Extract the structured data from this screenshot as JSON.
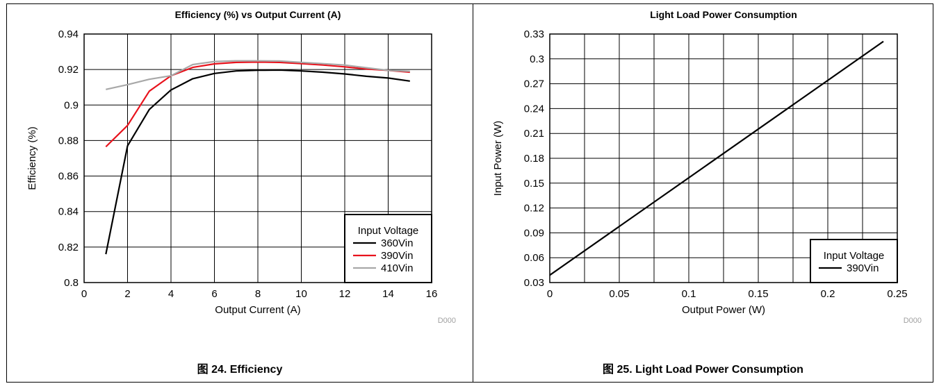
{
  "charts": [
    {
      "id": "efficiency",
      "caption": "图 24. Efficiency",
      "code": "D000",
      "chart_data": {
        "type": "line",
        "title": "Efficiency (%) vs Output Current (A)",
        "xlabel": "Output Current (A)",
        "ylabel": "Efficiency (%)",
        "xlim": [
          0,
          16
        ],
        "ylim": [
          0.8,
          0.94
        ],
        "xticks": [
          0,
          2,
          4,
          6,
          8,
          10,
          12,
          14,
          16
        ],
        "yticks": [
          0.8,
          0.82,
          0.84,
          0.86,
          0.88,
          0.9,
          0.92,
          0.94
        ],
        "xtick_labels": [
          "0",
          "2",
          "4",
          "6",
          "8",
          "10",
          "12",
          "14",
          "16"
        ],
        "ytick_labels": [
          "0.8",
          "0.82",
          "0.84",
          "0.86",
          "0.88",
          "0.9",
          "0.92",
          "0.94"
        ],
        "grid": true,
        "legend": {
          "title": "Input Voltage",
          "placement": "bottom-right"
        },
        "series": [
          {
            "name": "360Vin",
            "color": "#000000",
            "x": [
              1,
              2,
              3,
              4,
              5,
              6,
              7,
              8,
              9,
              10,
              11,
              12,
              13,
              14,
              15
            ],
            "y": [
              0.816,
              0.877,
              0.8975,
              0.9085,
              0.9148,
              0.9178,
              0.9192,
              0.9196,
              0.9197,
              0.9192,
              0.9185,
              0.9175,
              0.9162,
              0.9152,
              0.9135
            ]
          },
          {
            "name": "390Vin",
            "color": "#e8121c",
            "x": [
              1,
              2,
              3,
              4,
              5,
              6,
              7,
              8,
              9,
              10,
              11,
              12,
              13,
              14,
              15
            ],
            "y": [
              0.8765,
              0.8885,
              0.9078,
              0.9165,
              0.9212,
              0.9232,
              0.924,
              0.9242,
              0.924,
              0.9233,
              0.9225,
              0.9215,
              0.9203,
              0.9195,
              0.9185
            ]
          },
          {
            "name": "410Vin",
            "color": "#a8a8a8",
            "x": [
              1,
              2,
              3,
              4,
              5,
              6,
              7,
              8,
              9,
              10,
              11,
              12,
              13,
              14,
              15
            ],
            "y": [
              0.9088,
              0.9115,
              0.9145,
              0.9165,
              0.9228,
              0.9245,
              0.9249,
              0.9249,
              0.9248,
              0.924,
              0.9233,
              0.9225,
              0.921,
              0.9195,
              0.919
            ]
          }
        ]
      }
    },
    {
      "id": "light-load",
      "caption": "图 25. Light Load Power Consumption",
      "code": "D000",
      "chart_data": {
        "type": "line",
        "title": "Light Load Power Consumption",
        "xlabel": "Output Power (W)",
        "ylabel": "Input Power (W)",
        "xlim": [
          0,
          0.25
        ],
        "ylim": [
          0.03,
          0.33
        ],
        "xticks": [
          0,
          0.05,
          0.1,
          0.15,
          0.2,
          0.25
        ],
        "yticks": [
          0.03,
          0.06,
          0.09,
          0.12,
          0.15,
          0.18,
          0.21,
          0.24,
          0.27,
          0.3,
          0.33
        ],
        "xtick_labels": [
          "0",
          "0.05",
          "0.1",
          "0.15",
          "0.2",
          "0.25"
        ],
        "ytick_labels": [
          "0.03",
          "0.06",
          "0.09",
          "0.12",
          "0.15",
          "0.18",
          "0.21",
          "0.24",
          "0.27",
          "0.3",
          "0.33"
        ],
        "xminor_grid": [
          0.025,
          0.075,
          0.125,
          0.175,
          0.225
        ],
        "grid": true,
        "legend": {
          "title": "Input Voltage",
          "placement": "bottom-right"
        },
        "series": [
          {
            "name": "390Vin",
            "color": "#000000",
            "x": [
              0,
              0.24
            ],
            "y": [
              0.039,
              0.321
            ]
          }
        ]
      }
    }
  ]
}
